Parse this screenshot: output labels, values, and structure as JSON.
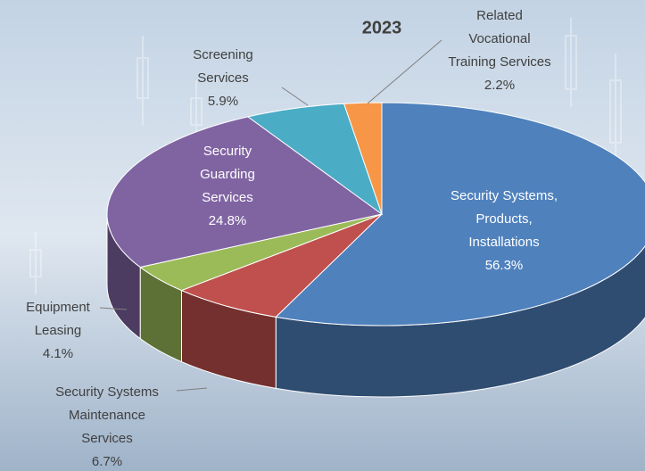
{
  "chart_data": {
    "type": "pie",
    "title": "2023",
    "categories": [
      "Security Systems,\nProducts,\nInstallations",
      "Security Systems\nMaintenance\nServices",
      "Equipment\nLeasing",
      "Security\nGuarding\nServices",
      "Screening\nServices",
      "Related\nVocational\nTraining Services"
    ],
    "values": [
      56.3,
      6.7,
      4.1,
      24.8,
      5.9,
      2.2
    ],
    "value_labels": [
      "56.3%",
      "6.7%",
      "4.1%",
      "24.8%",
      "5.9%",
      "2.2%"
    ],
    "colors": [
      "#4f81bd",
      "#c0504d",
      "#9bbb59",
      "#8064a2",
      "#4bacc6",
      "#f79646"
    ]
  }
}
